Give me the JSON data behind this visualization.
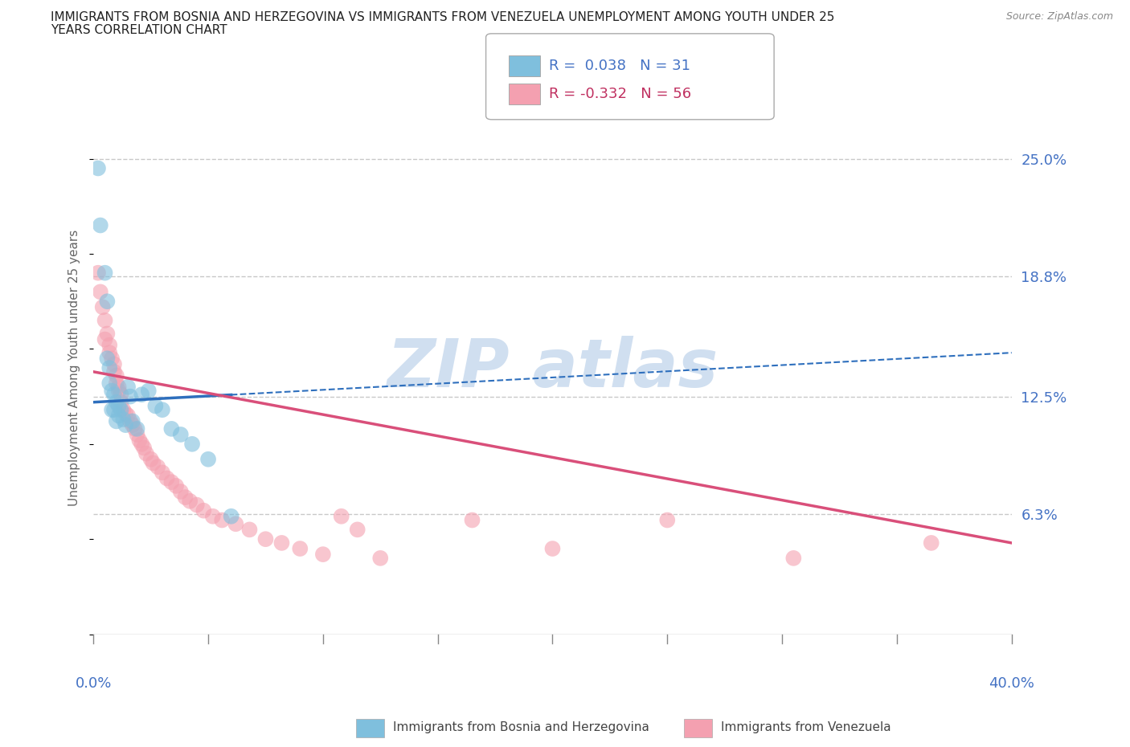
{
  "title_line1": "IMMIGRANTS FROM BOSNIA AND HERZEGOVINA VS IMMIGRANTS FROM VENEZUELA UNEMPLOYMENT AMONG YOUTH UNDER 25",
  "title_line2": "YEARS CORRELATION CHART",
  "source": "Source: ZipAtlas.com",
  "ylabel": "Unemployment Among Youth under 25 years",
  "xlim": [
    0.0,
    0.4
  ],
  "ylim": [
    0.0,
    0.28
  ],
  "yticks": [
    0.063,
    0.125,
    0.188,
    0.25
  ],
  "ytick_labels": [
    "6.3%",
    "12.5%",
    "18.8%",
    "25.0%"
  ],
  "bosnia_color": "#7fbfdd",
  "venezuela_color": "#f4a0b0",
  "bosnia_R": 0.038,
  "bosnia_N": 31,
  "venezuela_R": -0.332,
  "venezuela_N": 56,
  "bosnia_line_color": "#2e6fbd",
  "venezuela_line_color": "#d94f7a",
  "background_color": "#ffffff",
  "grid_color": "#c8c8c8",
  "axis_label_color": "#4472c4",
  "watermark_color": "#d0dff0",
  "bosnia_x": [
    0.002,
    0.003,
    0.005,
    0.006,
    0.006,
    0.007,
    0.007,
    0.008,
    0.008,
    0.009,
    0.009,
    0.01,
    0.01,
    0.011,
    0.011,
    0.012,
    0.013,
    0.014,
    0.015,
    0.016,
    0.017,
    0.019,
    0.021,
    0.024,
    0.027,
    0.03,
    0.034,
    0.038,
    0.043,
    0.05,
    0.06
  ],
  "bosnia_y": [
    0.245,
    0.215,
    0.19,
    0.175,
    0.145,
    0.14,
    0.132,
    0.128,
    0.118,
    0.126,
    0.118,
    0.122,
    0.112,
    0.12,
    0.115,
    0.118,
    0.113,
    0.11,
    0.13,
    0.125,
    0.112,
    0.108,
    0.126,
    0.128,
    0.12,
    0.118,
    0.108,
    0.105,
    0.1,
    0.092,
    0.062
  ],
  "venezuela_x": [
    0.002,
    0.003,
    0.004,
    0.005,
    0.005,
    0.006,
    0.007,
    0.007,
    0.008,
    0.009,
    0.009,
    0.01,
    0.01,
    0.011,
    0.011,
    0.012,
    0.012,
    0.013,
    0.014,
    0.015,
    0.016,
    0.017,
    0.018,
    0.019,
    0.02,
    0.021,
    0.022,
    0.023,
    0.025,
    0.026,
    0.028,
    0.03,
    0.032,
    0.034,
    0.036,
    0.038,
    0.04,
    0.042,
    0.045,
    0.048,
    0.052,
    0.056,
    0.062,
    0.068,
    0.075,
    0.082,
    0.09,
    0.1,
    0.108,
    0.115,
    0.125,
    0.165,
    0.2,
    0.25,
    0.305,
    0.365
  ],
  "venezuela_y": [
    0.19,
    0.18,
    0.172,
    0.165,
    0.155,
    0.158,
    0.152,
    0.148,
    0.145,
    0.142,
    0.138,
    0.136,
    0.132,
    0.13,
    0.128,
    0.126,
    0.122,
    0.118,
    0.116,
    0.115,
    0.112,
    0.11,
    0.108,
    0.105,
    0.102,
    0.1,
    0.098,
    0.095,
    0.092,
    0.09,
    0.088,
    0.085,
    0.082,
    0.08,
    0.078,
    0.075,
    0.072,
    0.07,
    0.068,
    0.065,
    0.062,
    0.06,
    0.058,
    0.055,
    0.05,
    0.048,
    0.045,
    0.042,
    0.062,
    0.055,
    0.04,
    0.06,
    0.045,
    0.06,
    0.04,
    0.048
  ],
  "bos_trend_x0": 0.0,
  "bos_trend_y0": 0.122,
  "bos_trend_x1": 0.4,
  "bos_trend_y1": 0.148,
  "ven_trend_x0": 0.0,
  "ven_trend_y0": 0.138,
  "ven_trend_x1": 0.4,
  "ven_trend_y1": 0.048
}
